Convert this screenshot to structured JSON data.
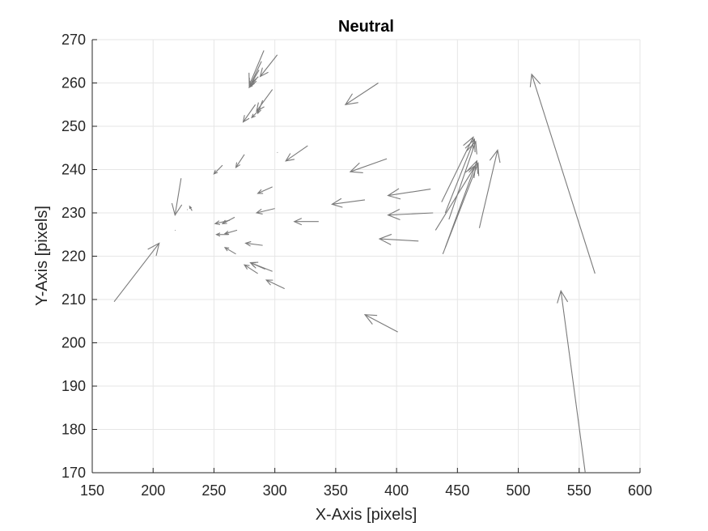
{
  "chart_data": {
    "type": "quiver",
    "title": "Neutral",
    "xlabel": "X-Axis [pixels]",
    "ylabel": "Y-Axis [pixels]",
    "xlim": [
      150,
      600
    ],
    "ylim": [
      170,
      270
    ],
    "xticks": [
      150,
      200,
      250,
      300,
      350,
      400,
      450,
      500,
      550,
      600
    ],
    "yticks": [
      170,
      180,
      190,
      200,
      210,
      220,
      230,
      240,
      250,
      260,
      270
    ],
    "grid": true,
    "colors": {
      "arrow": "#7a7a7a",
      "grid": "#e6e6e6",
      "axis": "#262626"
    },
    "vectors": [
      {
        "x": 168,
        "y": 209.5,
        "u": 37,
        "v": 13.5
      },
      {
        "x": 223,
        "y": 238,
        "u": -5,
        "v": -8.5
      },
      {
        "x": 218,
        "y": 226,
        "u": 0,
        "v": 0
      },
      {
        "x": 228,
        "y": 230.8,
        "u": 0,
        "v": 0
      },
      {
        "x": 232,
        "y": 230.5,
        "u": -2,
        "v": 1
      },
      {
        "x": 257,
        "y": 241,
        "u": -7,
        "v": -2
      },
      {
        "x": 275,
        "y": 243.5,
        "u": -7,
        "v": -3
      },
      {
        "x": 267,
        "y": 229,
        "u": -10,
        "v": -1.5
      },
      {
        "x": 263,
        "y": 228.3,
        "u": -12,
        "v": -0.8
      },
      {
        "x": 269,
        "y": 226,
        "u": -10,
        "v": -0.8
      },
      {
        "x": 262,
        "y": 225,
        "u": -10,
        "v": 0
      },
      {
        "x": 268,
        "y": 220.5,
        "u": -9,
        "v": 1.5
      },
      {
        "x": 302,
        "y": 244,
        "u": -0.3,
        "v": 0
      },
      {
        "x": 298,
        "y": 236,
        "u": -12,
        "v": -1.5
      },
      {
        "x": 300,
        "y": 231,
        "u": -15,
        "v": -1
      },
      {
        "x": 290,
        "y": 222.5,
        "u": -14,
        "v": 0.5
      },
      {
        "x": 298,
        "y": 216.5,
        "u": -18,
        "v": 2
      },
      {
        "x": 308,
        "y": 212.5,
        "u": -15,
        "v": 2
      },
      {
        "x": 292,
        "y": 217,
        "u": -12,
        "v": 1.5
      },
      {
        "x": 286,
        "y": 216,
        "u": -11,
        "v": 2
      },
      {
        "x": 336,
        "y": 228,
        "u": -20,
        "v": 0
      },
      {
        "x": 327,
        "y": 245.5,
        "u": -18,
        "v": -3.5
      },
      {
        "x": 385,
        "y": 260,
        "u": -27,
        "v": -5
      },
      {
        "x": 302,
        "y": 266.5,
        "u": -14,
        "v": -5
      },
      {
        "x": 298,
        "y": 258.5,
        "u": -13,
        "v": -5
      },
      {
        "x": 291,
        "y": 267.5,
        "u": -12,
        "v": -8
      },
      {
        "x": 289,
        "y": 265,
        "u": -10,
        "v": -6
      },
      {
        "x": 287,
        "y": 263,
        "u": -8,
        "v": -4
      },
      {
        "x": 285,
        "y": 261,
        "u": -6,
        "v": -2
      },
      {
        "x": 290,
        "y": 256,
        "u": -4,
        "v": -3
      },
      {
        "x": 288,
        "y": 254,
        "u": -7,
        "v": -2
      },
      {
        "x": 284,
        "y": 255,
        "u": -10,
        "v": -4
      },
      {
        "x": 392,
        "y": 242.5,
        "u": -30,
        "v": -3
      },
      {
        "x": 374,
        "y": 233,
        "u": -27,
        "v": -1
      },
      {
        "x": 428,
        "y": 235.5,
        "u": -35,
        "v": -1.5
      },
      {
        "x": 430,
        "y": 230,
        "u": -37,
        "v": -0.5
      },
      {
        "x": 418,
        "y": 223.5,
        "u": -32,
        "v": 0.5
      },
      {
        "x": 401,
        "y": 202.5,
        "u": -27,
        "v": 4
      },
      {
        "x": 563,
        "y": 216,
        "u": -52,
        "v": 46
      },
      {
        "x": 555,
        "y": 170,
        "u": -20,
        "v": 42
      },
      {
        "x": 468,
        "y": 226.5,
        "u": 15,
        "v": 18
      },
      {
        "x": 437,
        "y": 232.5,
        "u": 26,
        "v": 15
      },
      {
        "x": 440,
        "y": 230,
        "u": 24,
        "v": 17
      },
      {
        "x": 443,
        "y": 228.5,
        "u": 22,
        "v": 18
      },
      {
        "x": 432,
        "y": 226,
        "u": 33,
        "v": 15
      },
      {
        "x": 440,
        "y": 222,
        "u": 26,
        "v": 20
      },
      {
        "x": 438,
        "y": 220.5,
        "u": 29,
        "v": 21
      }
    ]
  }
}
